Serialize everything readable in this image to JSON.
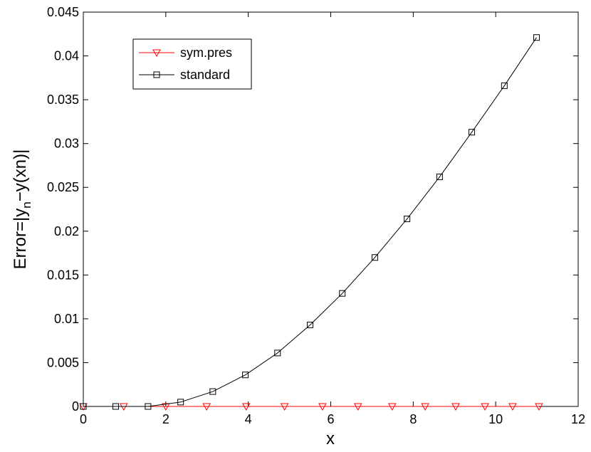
{
  "chart_data": {
    "type": "line",
    "xlabel": "x",
    "ylabel": [
      "Error=|y",
      "n",
      "−y(xn)|"
    ],
    "xlim": [
      0,
      12
    ],
    "xticks": [
      0,
      2,
      4,
      6,
      8,
      10,
      12
    ],
    "ylim": [
      0,
      0.045
    ],
    "yticks": [
      0,
      0.005,
      0.01,
      0.015,
      0.02,
      0.025,
      0.03,
      0.035,
      0.04,
      0.045
    ],
    "grid": false,
    "legend_position": "upper left",
    "series": [
      {
        "name": "sym.pres",
        "color": "#ff0000",
        "marker": "triangle-down",
        "x": [
          0,
          0.98,
          2.0,
          2.99,
          3.95,
          4.88,
          5.8,
          6.66,
          7.49,
          8.29,
          9.03,
          9.74,
          10.41,
          11.05
        ],
        "values": [
          0,
          0,
          0,
          0,
          0,
          0,
          0,
          0,
          0,
          0,
          0,
          0,
          0,
          0
        ]
      },
      {
        "name": "standard",
        "color": "#000000",
        "marker": "square",
        "x": [
          0,
          0.785,
          1.57,
          2.36,
          3.14,
          3.93,
          4.71,
          5.5,
          6.28,
          7.07,
          7.85,
          8.64,
          9.42,
          10.21,
          10.99
        ],
        "values": [
          0,
          0,
          0,
          0.0005,
          0.0017,
          0.0036,
          0.0061,
          0.0093,
          0.0129,
          0.017,
          0.0214,
          0.0262,
          0.0313,
          0.0366,
          0.0421
        ]
      }
    ]
  }
}
